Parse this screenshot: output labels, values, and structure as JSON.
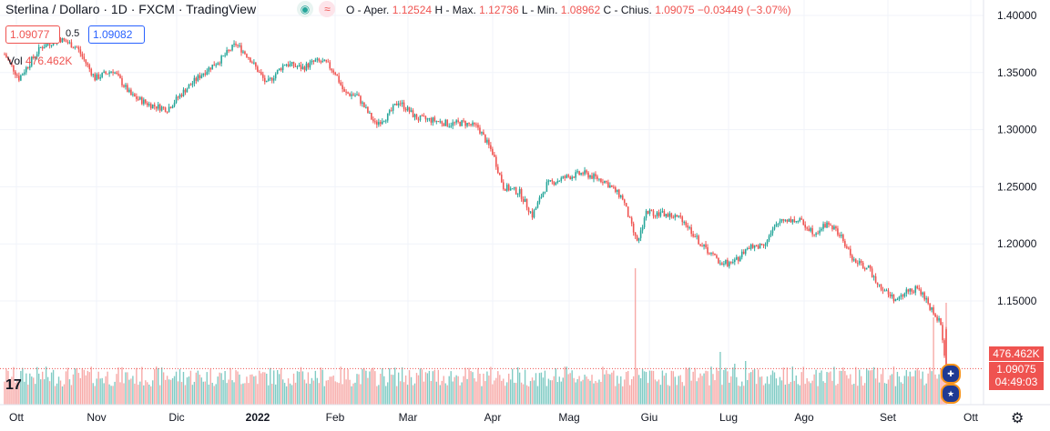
{
  "header": {
    "title": "Sterlina / Dollaro · 1D · FXCM · TradingView",
    "eye_icon": "eye-icon",
    "wave_icon": "wave-icon",
    "ohlc": {
      "o_label": "O - Aper.",
      "o_value": "1.12524",
      "h_label": "H - Max.",
      "h_value": "1.12736",
      "l_label": "L - Min.",
      "l_value": "1.08962",
      "c_label": "C - Chius.",
      "c_value": "1.09075",
      "change": "−0.03449 (−3.07%)"
    }
  },
  "quote": {
    "bid": "1.09077",
    "spread": "0.5",
    "ask": "1.09082"
  },
  "volume": {
    "label": "Vol",
    "value": "476.462K"
  },
  "badges": {
    "volume": "476.462K",
    "price": "1.09075",
    "countdown": "04:49:03"
  },
  "colors": {
    "up": "#26a69a",
    "down": "#ef5350",
    "vol_up": "#80cbc4",
    "vol_down": "#f7a9a7"
  },
  "chart_data": {
    "type": "candlestick",
    "yaxis": {
      "ticks": [
        "1.40000",
        "1.35000",
        "1.30000",
        "1.25000",
        "1.20000",
        "1.15000"
      ],
      "min": 1.09,
      "max": 1.4
    },
    "xaxis": {
      "ticks": [
        "Ott",
        "Nov",
        "Dic",
        "2022",
        "Feb",
        "Mar",
        "Apr",
        "Mag",
        "Giu",
        "Lug",
        "Ago",
        "Set",
        "Ott"
      ]
    },
    "anchors": [
      [
        0,
        1.366
      ],
      [
        8,
        1.345
      ],
      [
        20,
        1.372
      ],
      [
        30,
        1.38
      ],
      [
        40,
        1.372
      ],
      [
        50,
        1.345
      ],
      [
        60,
        1.352
      ],
      [
        70,
        1.33
      ],
      [
        80,
        1.322
      ],
      [
        90,
        1.318
      ],
      [
        100,
        1.335
      ],
      [
        110,
        1.35
      ],
      [
        120,
        1.362
      ],
      [
        128,
        1.375
      ],
      [
        135,
        1.364
      ],
      [
        145,
        1.34
      ],
      [
        155,
        1.358
      ],
      [
        165,
        1.354
      ],
      [
        172,
        1.36
      ],
      [
        178,
        1.358
      ],
      [
        183,
        1.35
      ],
      [
        188,
        1.332
      ],
      [
        195,
        1.33
      ],
      [
        205,
        1.305
      ],
      [
        212,
        1.312
      ],
      [
        218,
        1.325
      ],
      [
        228,
        1.31
      ],
      [
        238,
        1.308
      ],
      [
        246,
        1.305
      ],
      [
        254,
        1.306
      ],
      [
        262,
        1.302
      ],
      [
        270,
        1.28
      ],
      [
        276,
        1.25
      ],
      [
        285,
        1.245
      ],
      [
        292,
        1.225
      ],
      [
        300,
        1.252
      ],
      [
        310,
        1.258
      ],
      [
        320,
        1.262
      ],
      [
        332,
        1.255
      ],
      [
        342,
        1.24
      ],
      [
        350,
        1.2
      ],
      [
        355,
        1.228
      ],
      [
        365,
        1.226
      ],
      [
        375,
        1.222
      ],
      [
        385,
        1.2
      ],
      [
        395,
        1.185
      ],
      [
        403,
        1.182
      ],
      [
        410,
        1.195
      ],
      [
        420,
        1.2
      ],
      [
        430,
        1.222
      ],
      [
        440,
        1.22
      ],
      [
        448,
        1.21
      ],
      [
        456,
        1.218
      ],
      [
        462,
        1.208
      ],
      [
        470,
        1.185
      ],
      [
        478,
        1.178
      ],
      [
        486,
        1.16
      ],
      [
        494,
        1.15
      ],
      [
        500,
        1.16
      ],
      [
        506,
        1.16
      ],
      [
        512,
        1.145
      ],
      [
        518,
        1.13
      ],
      [
        521,
        1.0908
      ]
    ],
    "volume_spikes": [
      [
        349,
        150
      ],
      [
        350,
        40
      ],
      [
        396,
        58
      ],
      [
        404,
        45
      ],
      [
        410,
        48
      ],
      [
        514,
        96
      ],
      [
        521,
        112
      ]
    ],
    "last_close": 1.09075
  }
}
